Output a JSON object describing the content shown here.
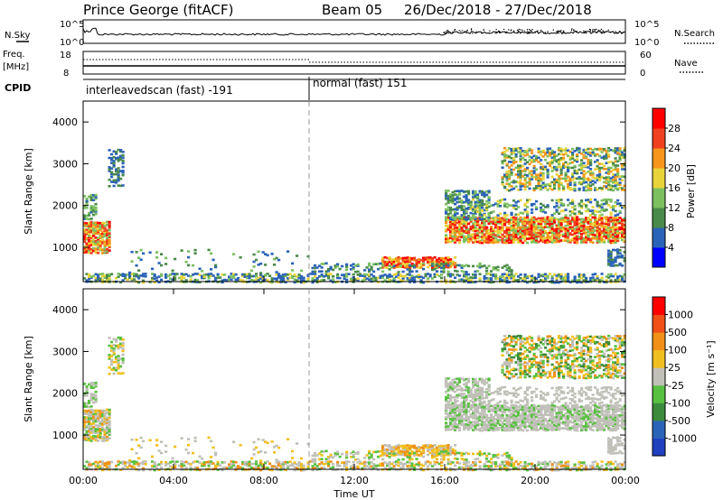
{
  "header": {
    "title": "Prince George (fitACF)",
    "beam": "Beam 05",
    "dates": "26/Dec/2018 - 27/Dec/2018"
  },
  "top_panels": {
    "nsky_label": "N.Sky",
    "nsky_ticks": [
      "10^5",
      "10^0"
    ],
    "nsearch_label": "N.Search",
    "nsearch_ticks": [
      "10^5",
      "10^0"
    ],
    "freq_label": "Freq.",
    "freq_unit": "[MHz]",
    "freq_ticks": [
      "18",
      "8"
    ],
    "nave_label": "Nave",
    "nave_ticks": [
      "60",
      "0"
    ],
    "cpid_label": "CPID"
  },
  "modes": [
    {
      "label": "interleavedscan (fast) -191",
      "start_hour": 0
    },
    {
      "label": "normal (fast) 151",
      "start_hour": 10
    }
  ],
  "chart_data": [
    {
      "type": "heatmap",
      "name": "Power",
      "ylabel": "Slant Range [km]",
      "xlim": [
        0,
        24
      ],
      "ylim": [
        180,
        4500
      ],
      "yticks": [
        "1000",
        "2000",
        "3000",
        "4000"
      ],
      "colorbar": {
        "label": "Power [dB]",
        "ticks": [
          "4",
          "8",
          "12",
          "16",
          "20",
          "24",
          "28"
        ],
        "range": [
          0,
          30
        ],
        "colors": [
          "#0000ff",
          "#2b63b8",
          "#4a8a4a",
          "#7cc060",
          "#e8d43a",
          "#f5961a",
          "#f04020",
          "#ff0000"
        ]
      }
    },
    {
      "type": "heatmap",
      "name": "Velocity",
      "ylabel": "Slant Range [km]",
      "xlabel": "Time UT",
      "xlim": [
        0,
        24
      ],
      "ylim": [
        180,
        4500
      ],
      "xticks": [
        "00:00",
        "04:00",
        "08:00",
        "12:00",
        "16:00",
        "20:00",
        "00:00"
      ],
      "yticks": [
        "1000",
        "2000",
        "3000",
        "4000"
      ],
      "colorbar": {
        "label": "Velocity [m s⁻¹]",
        "ticks": [
          "1000",
          "500",
          "100",
          "25",
          "-25",
          "-100",
          "-500",
          "-1000"
        ],
        "colors": [
          "#2040c0",
          "#2b63b8",
          "#3c8a3c",
          "#58c040",
          "#c0c0b8",
          "#f0c020",
          "#f09018",
          "#f05018",
          "#ff0000"
        ]
      }
    }
  ]
}
